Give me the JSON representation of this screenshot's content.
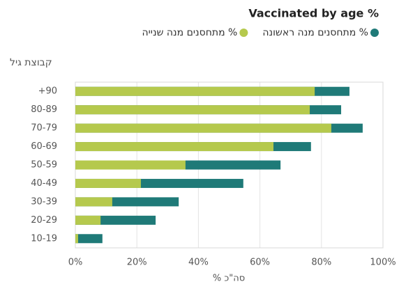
{
  "chart_data": {
    "type": "bar",
    "orientation": "horizontal",
    "overlay": true,
    "title": "Vaccinated by age %",
    "y_label": "קבוצת גיל",
    "x_label": "% סה\"כ",
    "categories": [
      "+90",
      "80-89",
      "70-79",
      "60-69",
      "50-59",
      "40-49",
      "30-39",
      "20-29",
      "10-19"
    ],
    "series": [
      {
        "name": "% מתחסנים מנה ראשונה",
        "color": "#1f7a78",
        "values": [
          89.1,
          86.4,
          93.4,
          76.6,
          66.7,
          54.6,
          33.6,
          26.1,
          8.8
        ]
      },
      {
        "name": "% מתחסנים מנה שנייה",
        "color": "#b5c94d",
        "values": [
          77.8,
          76.2,
          83.2,
          64.4,
          35.8,
          21.3,
          12.0,
          8.2,
          0.9
        ]
      }
    ],
    "xlim": [
      0,
      100
    ],
    "xticks": [
      {
        "value": 0,
        "label": "0%"
      },
      {
        "value": 20,
        "label": "20%"
      },
      {
        "value": 40,
        "label": "40%"
      },
      {
        "value": 60,
        "label": "60%"
      },
      {
        "value": 80,
        "label": "80%"
      },
      {
        "value": 100,
        "label": "100%"
      }
    ],
    "grid": true
  }
}
